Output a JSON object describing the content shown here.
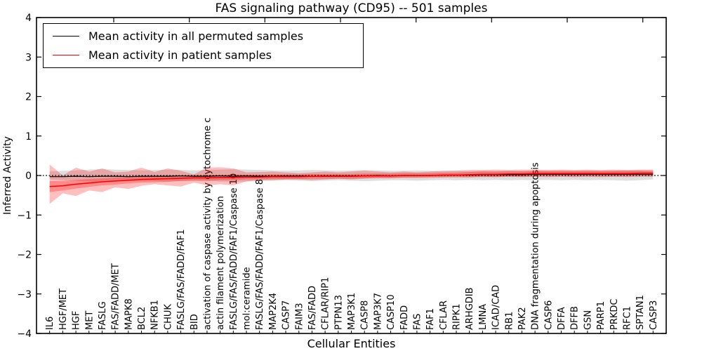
{
  "title": "FAS signaling pathway (CD95) -- 501 samples",
  "xlabel": "Cellular Entities",
  "ylabel": "Inferred Activity",
  "legend": {
    "items": [
      {
        "label": "Mean activity in all permuted samples",
        "color": "#000000"
      },
      {
        "label": "Mean activity in patient samples",
        "color": "#ff0000"
      }
    ]
  },
  "axes": {
    "yticks": [
      4,
      3,
      2,
      1,
      0,
      -1,
      -2,
      -3,
      -4
    ],
    "ytick_labels": [
      "4",
      "3",
      "2",
      "1",
      "0",
      "−1",
      "−2",
      "−3",
      "−4"
    ]
  },
  "colors": {
    "patient_line": "#ff0000",
    "permuted_line": "#000000",
    "patient_band": "#ff0000",
    "permuted_band": "#000000",
    "zero_line": "#000000",
    "frame": "#000000"
  },
  "chart_data": {
    "type": "line",
    "title": "FAS signaling pathway (CD95) -- 501 samples",
    "xlabel": "Cellular Entities",
    "ylabel": "Inferred Activity",
    "ylim": [
      -4,
      4
    ],
    "grid": false,
    "legend_position": "upper left",
    "zero_line": 0,
    "categories": [
      "IL6",
      "HGF/MET",
      "HGF",
      "MET",
      "FASLG",
      "FAS/FADD/MET",
      "MAPK8",
      "BCL2",
      "NFKB1",
      "CHUK",
      "FASLG/FAS/FADD/FAF1",
      "BID",
      "activation of caspase activity by cytochrome c",
      "actin filament polymerization",
      "FASLG/FAS/FADD/FAF1/Caspase 10",
      "mol:ceramide",
      "FASLG/FAS/FADD/FAF1/Caspase 8",
      "MAP2K4",
      "CASP7",
      "FAIM3",
      "FAS/FADD",
      "CFLAR/RIP1",
      "PTPN13",
      "MAP3K1",
      "CASP8",
      "MAP3K7",
      "CASP10",
      "FADD",
      "FAS",
      "FAF1",
      "CFLAR",
      "RIPK1",
      "ARHGDIB",
      "LMNA",
      "ICAD/CAD",
      "RB1",
      "PAK2",
      "DNA fragmentation during apoptosis",
      "CASP6",
      "DFFA",
      "DFFB",
      "GSN",
      "PARP1",
      "PRKDC",
      "RFC1",
      "SPTAN1",
      "CASP3"
    ],
    "series": [
      {
        "name": "Mean activity in all permuted samples",
        "color": "#000000",
        "width": 1.2,
        "values": [
          -0.03,
          -0.03,
          -0.02,
          -0.03,
          -0.02,
          -0.02,
          -0.03,
          -0.02,
          -0.02,
          -0.02,
          -0.01,
          -0.02,
          -0.02,
          -0.01,
          -0.02,
          -0.01,
          -0.02,
          -0.02,
          -0.01,
          -0.01,
          -0.02,
          -0.01,
          -0.01,
          -0.01,
          -0.01,
          0,
          -0.01,
          0,
          0,
          0,
          0.01,
          0.01,
          0.01,
          0.02,
          0.02,
          0.02,
          0.02,
          0.03,
          0.03,
          0.03,
          0.03,
          0.03,
          0.03,
          0.03,
          0.03,
          0.03,
          0.03
        ]
      },
      {
        "name": "Mean activity in patient samples",
        "color": "#ff0000",
        "width": 1.6,
        "values": [
          -0.28,
          -0.26,
          -0.22,
          -0.19,
          -0.16,
          -0.14,
          -0.12,
          -0.1,
          -0.09,
          -0.08,
          -0.07,
          -0.06,
          -0.06,
          -0.05,
          -0.05,
          -0.04,
          -0.04,
          -0.03,
          -0.03,
          -0.03,
          -0.02,
          -0.02,
          -0.02,
          -0.02,
          -0.01,
          -0.01,
          -0.01,
          0,
          0,
          0,
          0.01,
          0.01,
          0.02,
          0.03,
          0.03,
          0.04,
          0.04,
          0.05,
          0.05,
          0.05,
          0.05,
          0.05,
          0.05,
          0.05,
          0.05,
          0.06,
          0.06
        ]
      }
    ],
    "bands": [
      {
        "name": "permuted-samples-range",
        "color": "#000000",
        "opacity": 0.13,
        "upper": [
          0.1,
          0.12,
          0.13,
          0.15,
          0.16,
          0.15,
          0.14,
          0.13,
          0.14,
          0.15,
          0.14,
          0.13,
          0.14,
          0.15,
          0.16,
          0.15,
          0.14,
          0.13,
          0.12,
          0.13,
          0.14,
          0.13,
          0.12,
          0.13,
          0.14,
          0.13,
          0.12,
          0.12,
          0.13,
          0.12,
          0.11,
          0.12,
          0.11,
          0.12,
          0.11,
          0.12,
          0.11,
          0.12,
          0.11,
          0.12,
          0.11,
          0.12,
          0.11,
          0.12,
          0.13,
          0.12,
          0.1
        ],
        "lower": [
          -0.1,
          -0.12,
          -0.13,
          -0.15,
          -0.16,
          -0.15,
          -0.14,
          -0.13,
          -0.14,
          -0.15,
          -0.14,
          -0.13,
          -0.14,
          -0.15,
          -0.16,
          -0.15,
          -0.14,
          -0.13,
          -0.12,
          -0.13,
          -0.14,
          -0.13,
          -0.12,
          -0.13,
          -0.14,
          -0.13,
          -0.12,
          -0.12,
          -0.13,
          -0.12,
          -0.11,
          -0.12,
          -0.11,
          -0.12,
          -0.11,
          -0.12,
          -0.11,
          -0.12,
          -0.11,
          -0.12,
          -0.11,
          -0.12,
          -0.11,
          -0.12,
          -0.13,
          -0.12,
          -0.1
        ]
      },
      {
        "name": "patient-samples-range-outer",
        "color": "#ff0000",
        "opacity": 0.25,
        "upper": [
          0.28,
          0.0,
          0.2,
          0.1,
          0.18,
          0.08,
          0.1,
          0.2,
          0.09,
          0.18,
          0.12,
          0.03,
          0.2,
          0.21,
          0.18,
          0.08,
          0.09,
          0.1,
          0.08,
          0.06,
          0.08,
          0.1,
          0.08,
          0.1,
          0.12,
          0.1,
          0.08,
          0.1,
          0.08,
          0.1,
          0.12,
          0.12,
          0.14,
          0.14,
          0.15,
          0.14,
          0.15,
          0.15,
          0.14,
          0.15,
          0.14,
          0.15,
          0.14,
          0.15,
          0.14,
          0.15,
          0.15
        ],
        "lower": [
          -0.72,
          -0.45,
          -0.52,
          -0.38,
          -0.42,
          -0.3,
          -0.34,
          -0.26,
          -0.22,
          -0.25,
          -0.28,
          -0.18,
          -0.25,
          -0.22,
          -0.25,
          -0.15,
          -0.12,
          -0.12,
          -0.1,
          -0.1,
          -0.12,
          -0.1,
          -0.08,
          -0.1,
          -0.08,
          -0.06,
          -0.06,
          -0.05,
          -0.05,
          -0.04,
          -0.04,
          -0.03,
          -0.04,
          -0.03,
          -0.04,
          -0.03,
          -0.04,
          -0.03,
          -0.04,
          -0.03,
          -0.04,
          -0.03,
          -0.04,
          -0.03,
          -0.04,
          -0.03,
          -0.03
        ]
      },
      {
        "name": "patient-samples-range-inner",
        "color": "#ff0000",
        "opacity": 0.28,
        "upper": [
          -0.14,
          -0.14,
          -0.11,
          -0.09,
          -0.07,
          -0.05,
          -0.04,
          -0.02,
          -0.01,
          0,
          0,
          0.01,
          0.01,
          0.02,
          0.02,
          0.02,
          0.02,
          0.03,
          0.03,
          0.03,
          0.04,
          0.04,
          0.04,
          0.04,
          0.05,
          0.05,
          0.05,
          0.06,
          0.06,
          0.06,
          0.07,
          0.07,
          0.09,
          0.1,
          0.1,
          0.11,
          0.11,
          0.12,
          0.12,
          0.12,
          0.12,
          0.12,
          0.12,
          0.12,
          0.12,
          0.13,
          0.13
        ],
        "lower": [
          -0.42,
          -0.38,
          -0.33,
          -0.29,
          -0.25,
          -0.23,
          -0.2,
          -0.18,
          -0.17,
          -0.16,
          -0.14,
          -0.13,
          -0.13,
          -0.12,
          -0.12,
          -0.1,
          -0.1,
          -0.09,
          -0.09,
          -0.09,
          -0.08,
          -0.08,
          -0.08,
          -0.08,
          -0.07,
          -0.07,
          -0.07,
          -0.06,
          -0.06,
          -0.06,
          -0.05,
          -0.05,
          -0.05,
          -0.04,
          -0.04,
          -0.03,
          -0.03,
          -0.02,
          -0.02,
          -0.02,
          -0.02,
          -0.02,
          -0.02,
          -0.02,
          -0.02,
          -0.01,
          -0.01
        ]
      }
    ]
  }
}
